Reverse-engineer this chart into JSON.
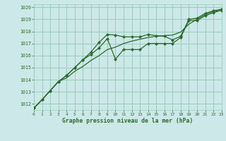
{
  "title": "Graphe pression niveau de la mer (hPa)",
  "bg_color": "#cce8e8",
  "grid_color": "#99ccbb",
  "line_color": "#2d6a2d",
  "xlim": [
    0,
    23
  ],
  "ylim": [
    1011.5,
    1020.25
  ],
  "yticks": [
    1012,
    1013,
    1014,
    1015,
    1016,
    1017,
    1018,
    1019,
    1020
  ],
  "xticks": [
    0,
    1,
    2,
    3,
    4,
    5,
    6,
    7,
    8,
    9,
    10,
    11,
    12,
    13,
    14,
    15,
    16,
    17,
    18,
    19,
    20,
    21,
    22,
    23
  ],
  "series_marked1": [
    1011.65,
    1012.35,
    1013.1,
    1013.85,
    1014.35,
    1015.0,
    1015.65,
    1016.3,
    1017.1,
    1017.75,
    1017.7,
    1017.55,
    1017.55,
    1017.55,
    1017.75,
    1017.65,
    1017.6,
    1017.3,
    1017.6,
    1019.0,
    1019.1,
    1019.5,
    1019.7,
    1019.85
  ],
  "series_marked2": [
    1011.65,
    1012.35,
    1013.1,
    1013.85,
    1014.35,
    1015.0,
    1015.65,
    1016.1,
    1016.65,
    1017.4,
    1015.7,
    1016.5,
    1016.5,
    1016.5,
    1017.0,
    1017.0,
    1017.0,
    1017.0,
    1017.5,
    1018.9,
    1018.9,
    1019.3,
    1019.55,
    1019.75
  ],
  "series_smooth": [
    1011.65,
    1012.35,
    1013.1,
    1013.85,
    1014.15,
    1014.7,
    1015.1,
    1015.6,
    1016.0,
    1016.5,
    1016.7,
    1017.0,
    1017.2,
    1017.35,
    1017.5,
    1017.6,
    1017.65,
    1017.7,
    1017.95,
    1018.6,
    1019.0,
    1019.4,
    1019.65,
    1019.75
  ]
}
